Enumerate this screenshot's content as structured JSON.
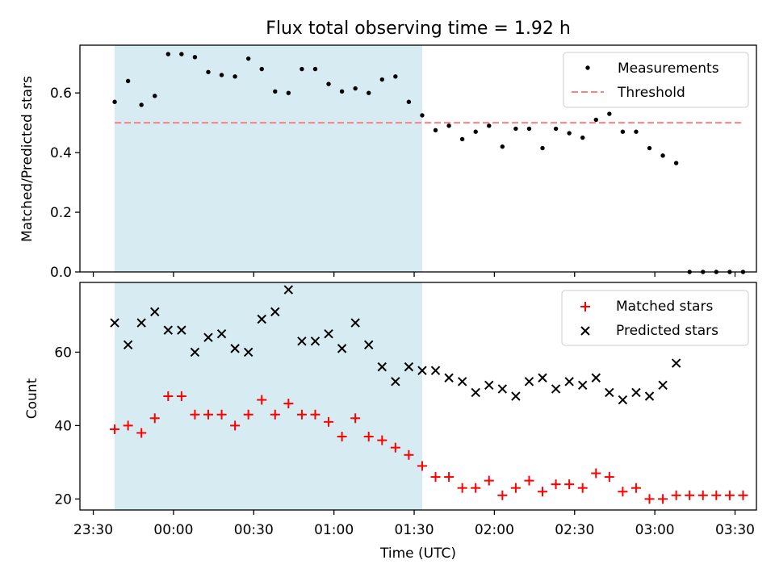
{
  "chart_data": [
    {
      "type": "scatter",
      "title": "Flux total observing time = 1.92 h",
      "ylabel": "Matched/Predicted stars",
      "xlabel": "",
      "ylim": [
        0,
        0.76
      ],
      "y_ticks": [
        0.0,
        0.2,
        0.4,
        0.6
      ],
      "y_tick_labels": [
        "0.0",
        "0.2",
        "0.4",
        "0.6"
      ],
      "x_is_time": true,
      "grid": false,
      "legend_position": "top-right",
      "shaded_interval": {
        "start": "23:38",
        "end": "01:33",
        "color": "#add8e6"
      },
      "threshold": {
        "name": "Threshold",
        "value": 0.5,
        "from": "23:38",
        "to": "03:33",
        "color": "#ff7f7f"
      },
      "series": [
        {
          "name": "Measurements",
          "color": "#000000",
          "marker": "dot",
          "points": [
            [
              "23:38",
              0.57
            ],
            [
              "23:43",
              0.64
            ],
            [
              "23:48",
              0.56
            ],
            [
              "23:53",
              0.59
            ],
            [
              "23:58",
              0.73
            ],
            [
              "00:03",
              0.73
            ],
            [
              "00:08",
              0.72
            ],
            [
              "00:13",
              0.67
            ],
            [
              "00:18",
              0.66
            ],
            [
              "00:23",
              0.655
            ],
            [
              "00:28",
              0.715
            ],
            [
              "00:33",
              0.68
            ],
            [
              "00:38",
              0.605
            ],
            [
              "00:43",
              0.6
            ],
            [
              "00:48",
              0.68
            ],
            [
              "00:53",
              0.68
            ],
            [
              "00:58",
              0.63
            ],
            [
              "01:03",
              0.605
            ],
            [
              "01:08",
              0.615
            ],
            [
              "01:13",
              0.6
            ],
            [
              "01:18",
              0.645
            ],
            [
              "01:23",
              0.655
            ],
            [
              "01:28",
              0.57
            ],
            [
              "01:33",
              0.525
            ],
            [
              "01:38",
              0.475
            ],
            [
              "01:43",
              0.49
            ],
            [
              "01:48",
              0.445
            ],
            [
              "01:53",
              0.47
            ],
            [
              "01:58",
              0.49
            ],
            [
              "02:03",
              0.42
            ],
            [
              "02:08",
              0.48
            ],
            [
              "02:13",
              0.48
            ],
            [
              "02:18",
              0.415
            ],
            [
              "02:23",
              0.48
            ],
            [
              "02:28",
              0.465
            ],
            [
              "02:33",
              0.45
            ],
            [
              "02:38",
              0.51
            ],
            [
              "02:43",
              0.53
            ],
            [
              "02:48",
              0.47
            ],
            [
              "02:53",
              0.47
            ],
            [
              "02:58",
              0.415
            ],
            [
              "03:03",
              0.39
            ],
            [
              "03:08",
              0.365
            ],
            [
              "03:13",
              0.0
            ],
            [
              "03:18",
              0.0
            ],
            [
              "03:23",
              0.0
            ],
            [
              "03:28",
              0.0
            ],
            [
              "03:33",
              0.0
            ]
          ]
        }
      ]
    },
    {
      "type": "scatter",
      "title": "",
      "ylabel": "Count",
      "xlabel": "Time (UTC)",
      "ylim": [
        17,
        79
      ],
      "y_ticks": [
        20,
        40,
        60
      ],
      "y_tick_labels": [
        "20",
        "40",
        "60"
      ],
      "x_range": [
        "23:25",
        "03:38"
      ],
      "x_ticks": [
        "23:30",
        "00:00",
        "00:30",
        "01:00",
        "01:30",
        "02:00",
        "02:30",
        "03:00",
        "03:30"
      ],
      "x_tick_labels": [
        "23:30",
        "00:00",
        "00:30",
        "01:00",
        "01:30",
        "02:00",
        "02:30",
        "03:00",
        "03:30"
      ],
      "grid": false,
      "legend_position": "top-right",
      "shaded_interval": {
        "start": "23:38",
        "end": "01:33",
        "color": "#add8e6"
      },
      "series": [
        {
          "name": "Matched stars",
          "color": "#ff0000",
          "marker": "plus",
          "points": [
            [
              "23:38",
              39
            ],
            [
              "23:43",
              40
            ],
            [
              "23:48",
              38
            ],
            [
              "23:53",
              42
            ],
            [
              "23:58",
              48
            ],
            [
              "00:03",
              48
            ],
            [
              "00:08",
              43
            ],
            [
              "00:13",
              43
            ],
            [
              "00:18",
              43
            ],
            [
              "00:23",
              40
            ],
            [
              "00:28",
              43
            ],
            [
              "00:33",
              47
            ],
            [
              "00:38",
              43
            ],
            [
              "00:43",
              46
            ],
            [
              "00:48",
              43
            ],
            [
              "00:53",
              43
            ],
            [
              "00:58",
              41
            ],
            [
              "01:03",
              37
            ],
            [
              "01:08",
              42
            ],
            [
              "01:13",
              37
            ],
            [
              "01:18",
              36
            ],
            [
              "01:23",
              34
            ],
            [
              "01:28",
              32
            ],
            [
              "01:33",
              29
            ],
            [
              "01:38",
              26
            ],
            [
              "01:43",
              26
            ],
            [
              "01:48",
              23
            ],
            [
              "01:53",
              23
            ],
            [
              "01:58",
              25
            ],
            [
              "02:03",
              21
            ],
            [
              "02:08",
              23
            ],
            [
              "02:13",
              25
            ],
            [
              "02:18",
              22
            ],
            [
              "02:23",
              24
            ],
            [
              "02:28",
              24
            ],
            [
              "02:33",
              23
            ],
            [
              "02:38",
              27
            ],
            [
              "02:43",
              26
            ],
            [
              "02:48",
              22
            ],
            [
              "02:53",
              23
            ],
            [
              "02:58",
              20
            ],
            [
              "03:03",
              20
            ],
            [
              "03:08",
              21
            ],
            [
              "03:13",
              21
            ],
            [
              "03:18",
              21
            ],
            [
              "03:23",
              21
            ],
            [
              "03:28",
              21
            ],
            [
              "03:33",
              21
            ]
          ]
        },
        {
          "name": "Predicted stars",
          "color": "#000000",
          "marker": "x",
          "points": [
            [
              "23:38",
              68
            ],
            [
              "23:43",
              62
            ],
            [
              "23:48",
              68
            ],
            [
              "23:53",
              71
            ],
            [
              "23:58",
              66
            ],
            [
              "00:03",
              66
            ],
            [
              "00:08",
              60
            ],
            [
              "00:13",
              64
            ],
            [
              "00:18",
              65
            ],
            [
              "00:23",
              61
            ],
            [
              "00:28",
              60
            ],
            [
              "00:33",
              69
            ],
            [
              "00:38",
              71
            ],
            [
              "00:43",
              77
            ],
            [
              "00:48",
              63
            ],
            [
              "00:53",
              63
            ],
            [
              "00:58",
              65
            ],
            [
              "01:03",
              61
            ],
            [
              "01:08",
              68
            ],
            [
              "01:13",
              62
            ],
            [
              "01:18",
              56
            ],
            [
              "01:23",
              52
            ],
            [
              "01:28",
              56
            ],
            [
              "01:33",
              55
            ],
            [
              "01:38",
              55
            ],
            [
              "01:43",
              53
            ],
            [
              "01:48",
              52
            ],
            [
              "01:53",
              49
            ],
            [
              "01:58",
              51
            ],
            [
              "02:03",
              50
            ],
            [
              "02:08",
              48
            ],
            [
              "02:13",
              52
            ],
            [
              "02:18",
              53
            ],
            [
              "02:23",
              50
            ],
            [
              "02:28",
              52
            ],
            [
              "02:33",
              51
            ],
            [
              "02:38",
              53
            ],
            [
              "02:43",
              49
            ],
            [
              "02:48",
              47
            ],
            [
              "02:53",
              49
            ],
            [
              "02:58",
              48
            ],
            [
              "03:03",
              51
            ],
            [
              "03:08",
              57
            ]
          ]
        }
      ]
    }
  ]
}
